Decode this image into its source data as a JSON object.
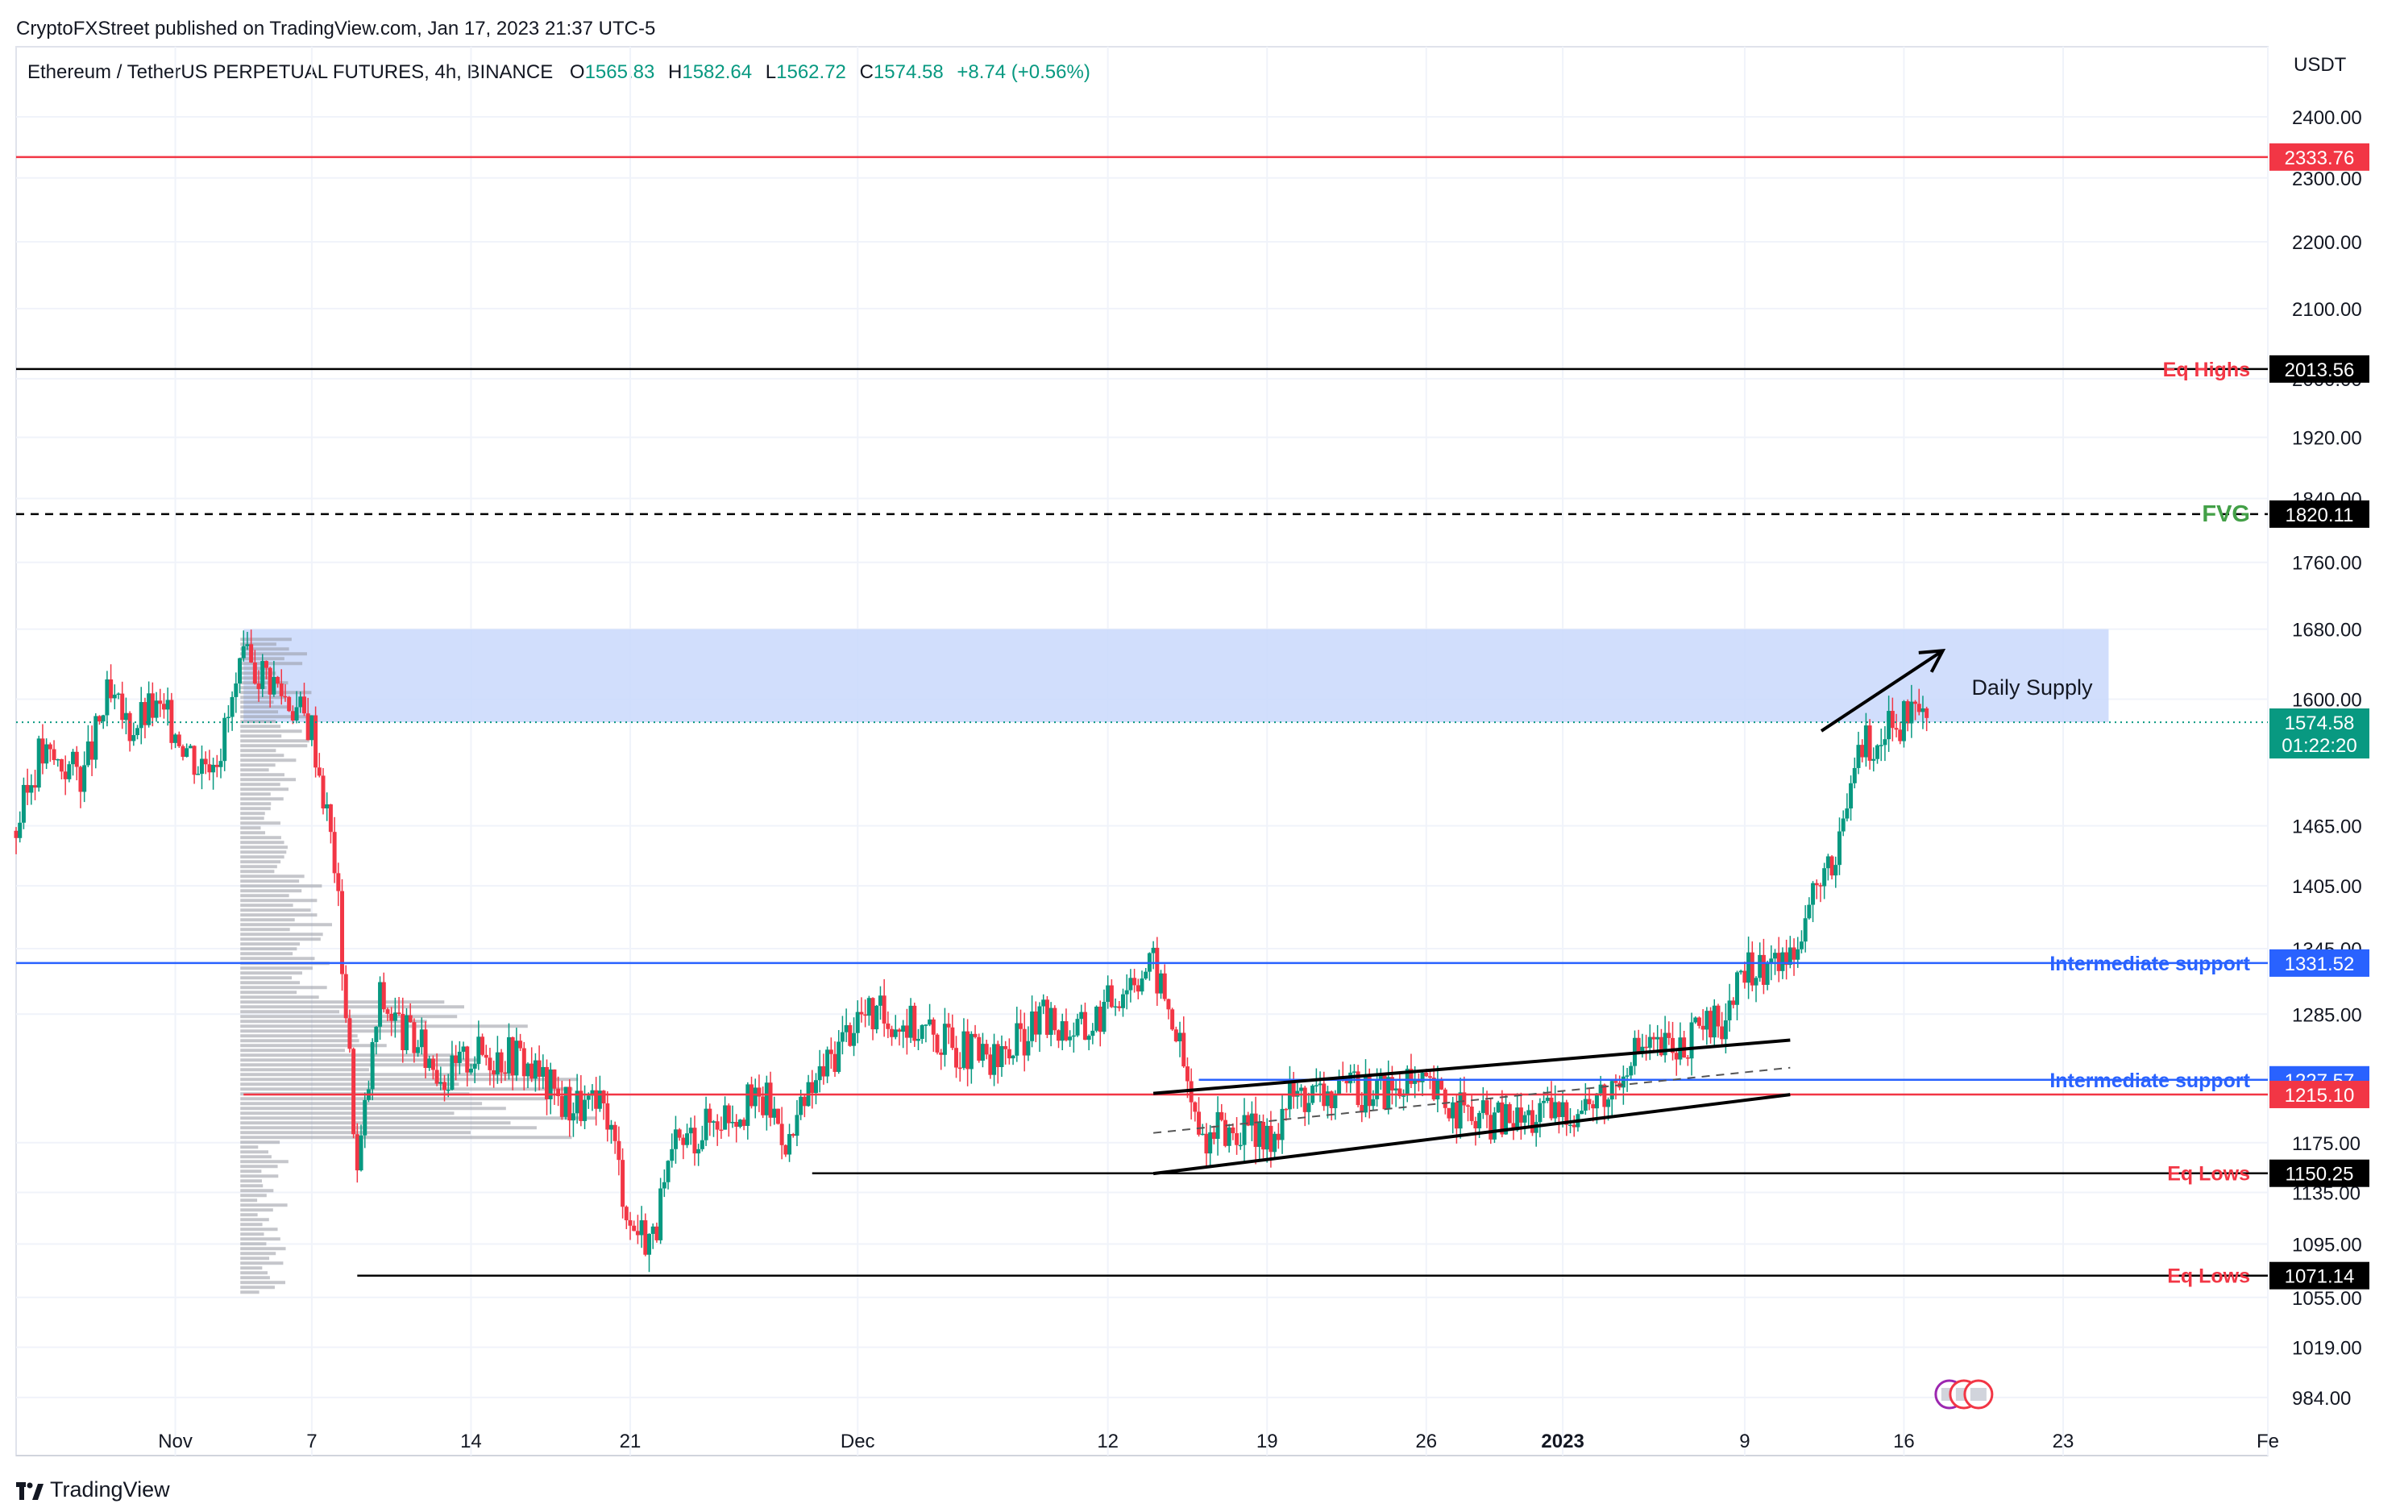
{
  "publisher": "CryptoFXStreet published on TradingView.com, Jan 17, 2023 21:37 UTC-5",
  "symbol": "Ethereum / TetherUS PERPETUAL FUTURES, 4h, BINANCE",
  "ohlc": {
    "open_label": "O",
    "open": "1565.83",
    "high_label": "H",
    "high": "1582.64",
    "low_label": "L",
    "low": "1562.72",
    "close_label": "C",
    "close": "1574.58",
    "change": "+8.74 (+0.56%)"
  },
  "brand": "TradingView",
  "colors": {
    "up": "#089981",
    "down": "#f23645",
    "supply_zone": "#c9d8fb",
    "support": "#2962ff",
    "resistance": "#f23645",
    "label_red": "#f23645",
    "fvg": "#43a047"
  },
  "chart_data": {
    "type": "candlestick",
    "currency": "USDT",
    "timeframe": "4h",
    "y_scale": "log",
    "ylim": [
      945,
      2520
    ],
    "xlim": [
      "2022-10-25",
      "2023-02-01"
    ],
    "y_ticks": [
      "2400.00",
      "2300.00",
      "2200.00",
      "2100.00",
      "2000.00",
      "1920.00",
      "1840.00",
      "1760.00",
      "1680.00",
      "1600.00",
      "1465.00",
      "1405.00",
      "1345.00",
      "1285.00",
      "1175.00",
      "1135.00",
      "1095.00",
      "1055.00",
      "1019.00",
      "984.00"
    ],
    "x_ticks": [
      {
        "date": "2022-11-01",
        "label": "Nov"
      },
      {
        "date": "2022-11-07",
        "label": "7"
      },
      {
        "date": "2022-11-14",
        "label": "14"
      },
      {
        "date": "2022-11-21",
        "label": "21"
      },
      {
        "date": "2022-12-01",
        "label": "Dec"
      },
      {
        "date": "2022-12-12",
        "label": "12"
      },
      {
        "date": "2022-12-19",
        "label": "19"
      },
      {
        "date": "2022-12-26",
        "label": "26"
      },
      {
        "date": "2023-01-01",
        "label": "2023"
      },
      {
        "date": "2023-01-09",
        "label": "9"
      },
      {
        "date": "2023-01-16",
        "label": "16"
      },
      {
        "date": "2023-01-23",
        "label": "23"
      },
      {
        "date": "2023-02-01",
        "label": "Fe"
      }
    ],
    "price_path": [
      [
        "2022-10-25",
        1460
      ],
      [
        "2022-10-26",
        1540
      ],
      [
        "2022-10-28",
        1520
      ],
      [
        "2022-10-29",
        1600
      ],
      [
        "2022-10-30",
        1570
      ],
      [
        "2022-10-31",
        1590
      ],
      [
        "2022-11-01",
        1570
      ],
      [
        "2022-11-02",
        1530
      ],
      [
        "2022-11-03",
        1550
      ],
      [
        "2022-11-04",
        1640
      ],
      [
        "2022-11-05",
        1630
      ],
      [
        "2022-11-06",
        1600
      ],
      [
        "2022-11-07",
        1570
      ],
      [
        "2022-11-08",
        1430
      ],
      [
        "2022-11-09",
        1150
      ],
      [
        "2022-11-10",
        1300
      ],
      [
        "2022-11-11",
        1270
      ],
      [
        "2022-11-13",
        1230
      ],
      [
        "2022-11-14",
        1250
      ],
      [
        "2022-11-16",
        1250
      ],
      [
        "2022-11-18",
        1210
      ],
      [
        "2022-11-20",
        1200
      ],
      [
        "2022-11-21",
        1110
      ],
      [
        "2022-11-22",
        1100
      ],
      [
        "2022-11-23",
        1170
      ],
      [
        "2022-11-25",
        1200
      ],
      [
        "2022-11-27",
        1210
      ],
      [
        "2022-11-28",
        1175
      ],
      [
        "2022-11-29",
        1220
      ],
      [
        "2022-12-01",
        1285
      ],
      [
        "2022-12-03",
        1280
      ],
      [
        "2022-12-05",
        1260
      ],
      [
        "2022-12-07",
        1240
      ],
      [
        "2022-12-09",
        1280
      ],
      [
        "2022-12-11",
        1270
      ],
      [
        "2022-12-13",
        1320
      ],
      [
        "2022-12-14",
        1330
      ],
      [
        "2022-12-15",
        1270
      ],
      [
        "2022-12-16",
        1180
      ],
      [
        "2022-12-17",
        1185
      ],
      [
        "2022-12-18",
        1185
      ],
      [
        "2022-12-19",
        1175
      ],
      [
        "2022-12-20",
        1215
      ],
      [
        "2022-12-22",
        1215
      ],
      [
        "2022-12-24",
        1220
      ],
      [
        "2022-12-26",
        1220
      ],
      [
        "2022-12-28",
        1195
      ],
      [
        "2022-12-30",
        1195
      ],
      [
        "2023-01-01",
        1200
      ],
      [
        "2023-01-03",
        1215
      ],
      [
        "2023-01-04",
        1255
      ],
      [
        "2023-01-06",
        1255
      ],
      [
        "2023-01-08",
        1280
      ],
      [
        "2023-01-09",
        1320
      ],
      [
        "2023-01-10",
        1330
      ],
      [
        "2023-01-11",
        1340
      ],
      [
        "2023-01-12",
        1400
      ],
      [
        "2023-01-13",
        1420
      ],
      [
        "2023-01-14",
        1550
      ],
      [
        "2023-01-15",
        1560
      ],
      [
        "2023-01-16",
        1575
      ],
      [
        "2023-01-17",
        1574.58
      ]
    ],
    "levels": [
      {
        "name": "Intermediate support",
        "label": "Intermediate support",
        "value": 1331.52,
        "value_label": "1331.52",
        "color": "#2962ff",
        "style": "solid",
        "from": "2022-10-25"
      },
      {
        "name": "Intermediate support",
        "label": "Intermediate support",
        "value": 1227.57,
        "value_label": "1227.57",
        "color": "#2962ff",
        "style": "solid",
        "from": "2022-12-16"
      },
      {
        "name": "",
        "label": "",
        "value": 1215.1,
        "value_label": "1215.10",
        "color": "#f23645",
        "style": "solid",
        "from": "2022-11-04"
      },
      {
        "name": "Eq Lows",
        "label": "Eq Lows",
        "value": 1150.25,
        "value_label": "1150.25",
        "color": "#000000",
        "style": "solid",
        "from": "2022-11-29"
      },
      {
        "name": "Eq Lows",
        "label": "Eq Lows",
        "value": 1071.14,
        "value_label": "1071.14",
        "color": "#000000",
        "style": "solid",
        "from": "2022-11-09"
      },
      {
        "name": "Eq Highs",
        "label": "Eq Highs",
        "value": 2013.56,
        "value_label": "2013.56",
        "color": "#000000",
        "style": "solid",
        "from": "2022-10-25"
      },
      {
        "name": "FVG",
        "label": "FVG",
        "value": 1820.11,
        "value_label": "1820.11",
        "color": "#000000",
        "style": "dashed",
        "from": "2022-10-25"
      },
      {
        "name": "",
        "label": "",
        "value": 2333.76,
        "value_label": "2333.76",
        "color": "#f23645",
        "style": "solid",
        "from": "2022-10-25"
      }
    ],
    "zones": [
      {
        "label": "Daily Supply",
        "from": "2022-11-04",
        "to": "2023-01-25",
        "low": 1574.57,
        "high": 1680,
        "value_label": "1574.57"
      }
    ],
    "current_price": {
      "value": 1574.58,
      "label": "1574.58",
      "countdown": "01:22:20"
    },
    "channel": {
      "upper": [
        [
          "2022-12-14",
          1216
        ],
        [
          "2023-01-11",
          1262
        ]
      ],
      "lower": [
        [
          "2022-12-14",
          1150
        ],
        [
          "2023-01-11",
          1215
        ]
      ],
      "mid": [
        [
          "2022-12-14",
          1183
        ],
        [
          "2023-01-11",
          1238
        ]
      ]
    },
    "arrow": [
      [
        "2023-01-14",
        1565
      ],
      [
        "2023-01-17",
        1655
      ]
    ]
  }
}
